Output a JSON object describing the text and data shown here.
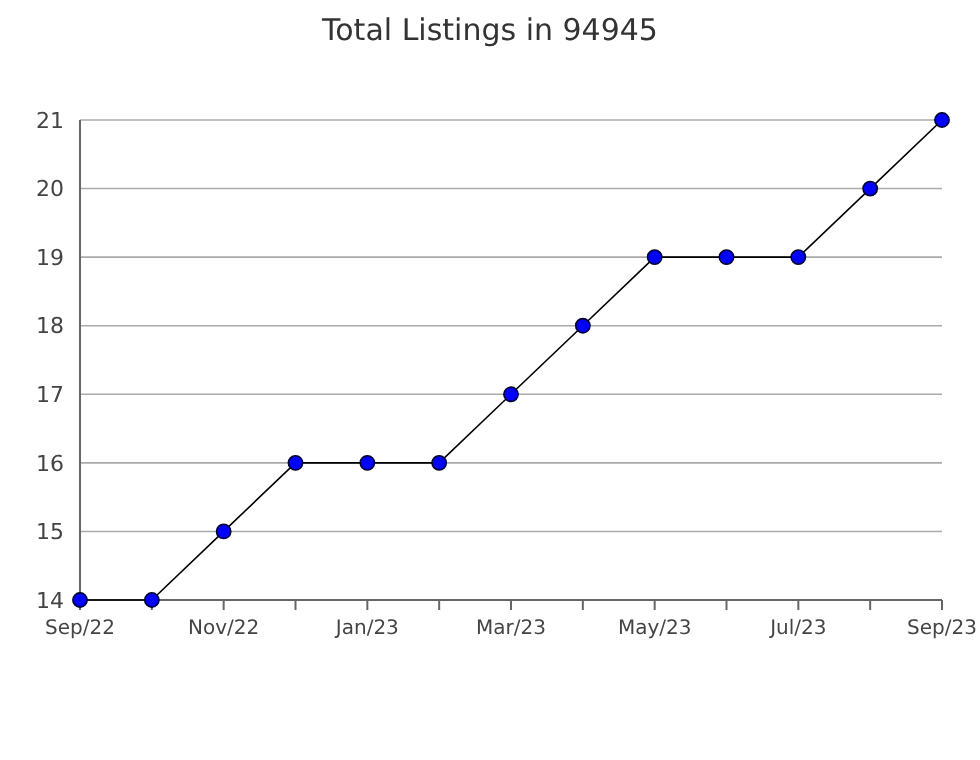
{
  "chart_data": {
    "type": "line",
    "title": "Total Listings in 94945",
    "categories": [
      "Sep/22",
      null,
      "Nov/22",
      null,
      "Jan/23",
      null,
      "Mar/23",
      null,
      "May/23",
      null,
      "Jul/23",
      null,
      "Sep/23"
    ],
    "series": [
      {
        "color": "#0000ff",
        "values": [
          14,
          14,
          15,
          16,
          16,
          16,
          17,
          18,
          19,
          19,
          19,
          20,
          21
        ]
      }
    ],
    "ylim": [
      14,
      21
    ],
    "yticks": [
      14,
      15,
      16,
      17,
      18,
      19,
      20,
      21
    ],
    "grid": "y",
    "marker": "circle",
    "line_style": "solid"
  }
}
